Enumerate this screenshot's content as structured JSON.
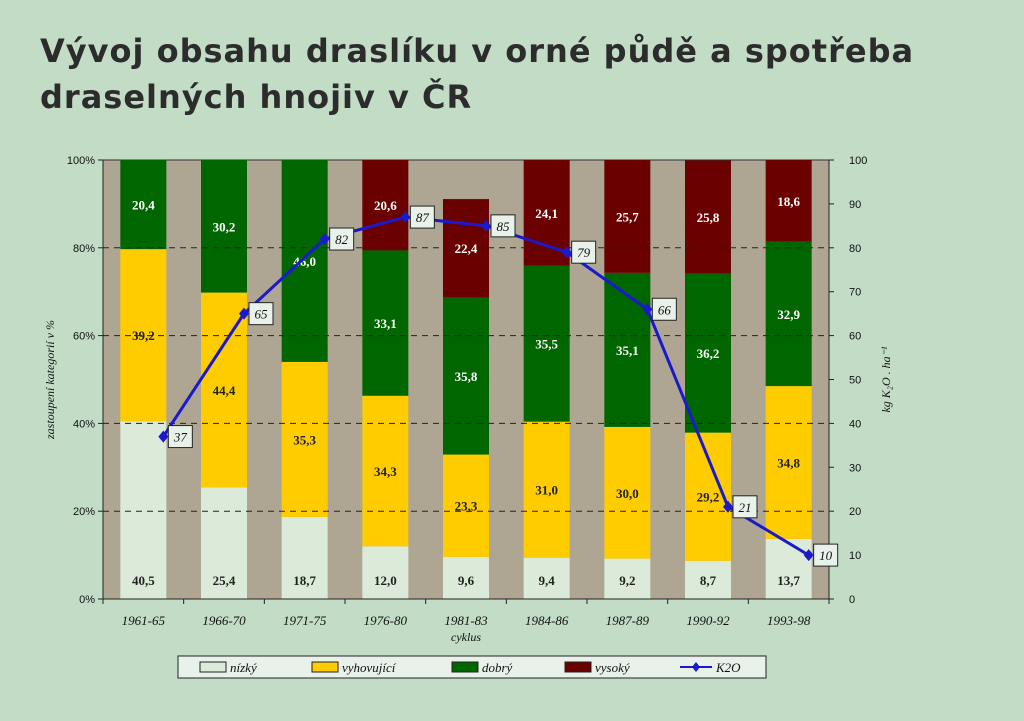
{
  "title": {
    "line1": "Vývoj obsahu draslíku v orné půdě a spotřeba",
    "line2": "draselných hnojiv v ČR"
  },
  "colors": {
    "background": "#c2dcc6",
    "plot_bg": "#aea692",
    "nizky": "#dcebd9",
    "vyhovujici": "#ffcc00",
    "dobry": "#006600",
    "vysoky": "#6b0000",
    "k2o_line": "#1a1acc"
  },
  "chart_data": {
    "type": "bar",
    "stacked": true,
    "categories": [
      "1961-65",
      "1966-70",
      "1971-75",
      "1976-80",
      "1981-83",
      "1984-86",
      "1987-89",
      "1990-92",
      "1993-98"
    ],
    "xlabel": "cyklus",
    "ylabel": "zastoupení kategorií v %",
    "y2label": "kg K₂O . ha⁻¹",
    "yticks": [
      "0%",
      "20%",
      "40%",
      "60%",
      "80%",
      "100%"
    ],
    "ylim": [
      0,
      100
    ],
    "y2lim": [
      0,
      100
    ],
    "y2ticks": [
      "0",
      "10",
      "20",
      "30",
      "40",
      "50",
      "60",
      "70",
      "80",
      "90",
      "100"
    ],
    "grid": "dashed horizontal",
    "legend_position": "bottom",
    "series": [
      {
        "name": "nízký",
        "color": "#dcebd9",
        "values": [
          40.5,
          25.4,
          18.7,
          12.0,
          9.6,
          9.4,
          9.2,
          8.7,
          13.7
        ],
        "labels": [
          "40,5",
          "25,4",
          "18,7",
          "12,0",
          "9,6",
          "9,4",
          "9,2",
          "8,7",
          "13,7"
        ]
      },
      {
        "name": "vyhovující",
        "color": "#ffcc00",
        "values": [
          39.2,
          44.4,
          35.3,
          34.3,
          23.3,
          31.0,
          30.0,
          29.2,
          34.8
        ],
        "labels": [
          "39,2",
          "44,4",
          "35,3",
          "34,3",
          "23,3",
          "31,0",
          "30,0",
          "29,2",
          "34,8"
        ]
      },
      {
        "name": "dobrý",
        "color": "#006600",
        "values": [
          20.4,
          30.2,
          46.0,
          33.1,
          35.8,
          35.5,
          35.1,
          36.2,
          32.9
        ],
        "labels": [
          "20,4",
          "30,2",
          "46,0",
          "33,1",
          "35,8",
          "35,5",
          "35,1",
          "36,2",
          "32,9"
        ]
      },
      {
        "name": "vysoký",
        "color": "#6b0000",
        "values": [
          0,
          0,
          0,
          20.6,
          22.4,
          24.1,
          25.7,
          25.8,
          18.6
        ],
        "labels": [
          "",
          "",
          "",
          "20,6",
          "22,4",
          "24,1",
          "25,7",
          "25,8",
          "18,6"
        ]
      }
    ],
    "line": {
      "name": "K2O",
      "color": "#1a1acc",
      "axis": "right",
      "values": [
        37,
        65,
        82,
        87,
        85,
        79,
        66,
        21,
        10
      ],
      "labels": [
        "37",
        "65",
        "82",
        "87",
        "85",
        "79",
        "66",
        "21",
        "10"
      ]
    }
  }
}
